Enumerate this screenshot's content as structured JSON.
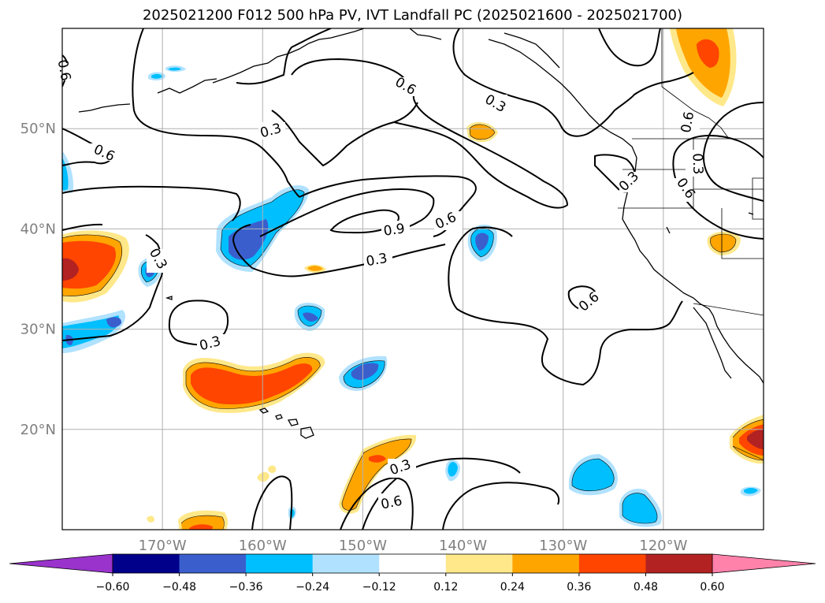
{
  "title": "2025021200 F012 500 hPa PV, IVT Landfall PC (2025021600 - 2025021700)",
  "map": {
    "lon_range": [
      -180,
      -110
    ],
    "lat_range": [
      10,
      60
    ],
    "lat_ticks": [
      {
        "value": 50,
        "label": "50°N"
      },
      {
        "value": 40,
        "label": "40°N"
      },
      {
        "value": 30,
        "label": "30°N"
      },
      {
        "value": 20,
        "label": "20°N"
      }
    ],
    "lon_ticks": [
      {
        "value": -170,
        "label": "170°W"
      },
      {
        "value": -160,
        "label": "160°W"
      },
      {
        "value": -150,
        "label": "150°W"
      },
      {
        "value": -140,
        "label": "140°W"
      },
      {
        "value": -130,
        "label": "130°W"
      },
      {
        "value": -120,
        "label": "120°W"
      }
    ],
    "gridlines": true
  },
  "contour_labels": [
    "0.6",
    "0.6",
    "0.3",
    "0.6",
    "0.3",
    "0.9",
    "0.6",
    "0.3",
    "0.3",
    "0.3",
    "0.6",
    "0.3",
    "0.6",
    "0.3",
    "0.6",
    "0.3",
    "0.6"
  ],
  "colorbar": {
    "extend": "both",
    "ticks": [
      "−0.60",
      "−0.48",
      "−0.36",
      "−0.24",
      "−0.12",
      "0.12",
      "0.24",
      "0.36",
      "0.48",
      "0.60"
    ],
    "colors": {
      "below_min": "#9933cc",
      "b1": "#00008b",
      "b2": "#3a5fcd",
      "b3": "#00bfff",
      "b4": "#b0e2ff",
      "neutral": "#ffffff",
      "p1": "#ffe88a",
      "p2": "#ffa500",
      "p3": "#ff4500",
      "p4": "#b22222",
      "above_max": "#ff82ab"
    }
  }
}
